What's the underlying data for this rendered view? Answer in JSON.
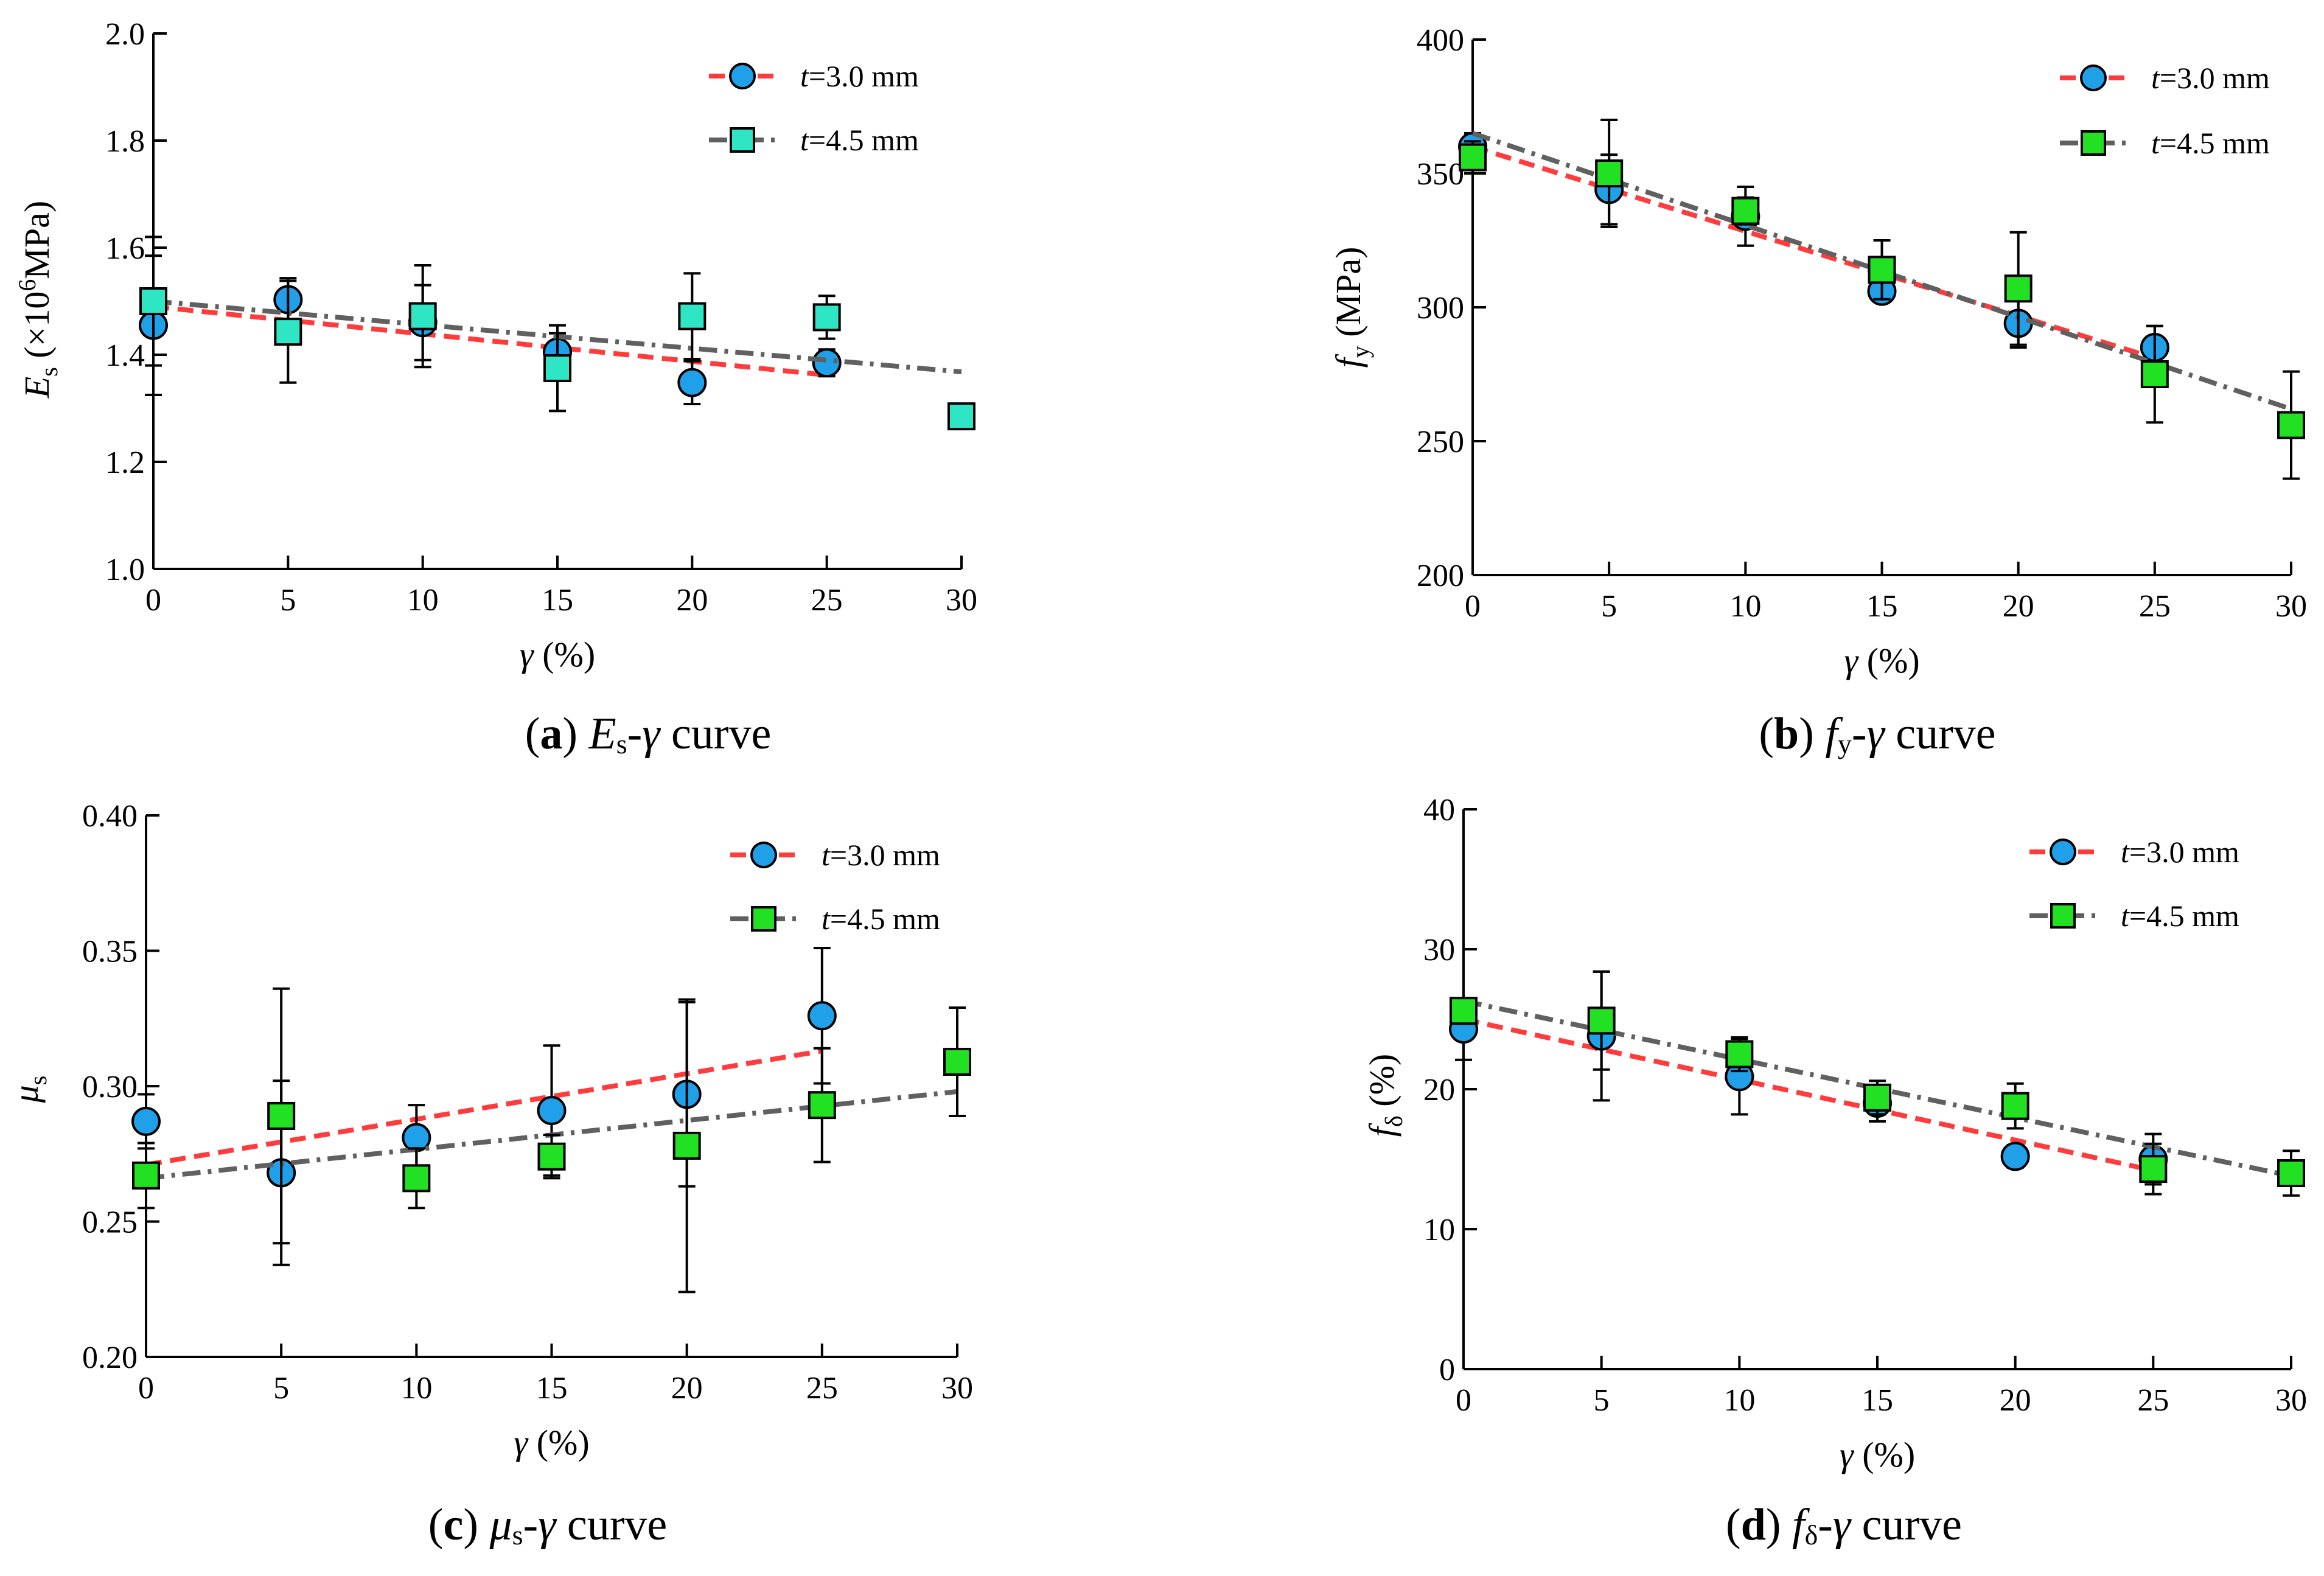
{
  "colors": {
    "series_30_line": "#ff3b3b",
    "series_45_line": "#606060",
    "marker_30": "#1fa0e8",
    "marker_45_panel_a": "#2ee6c4",
    "marker_45_other": "#22e022"
  },
  "chart_data": [
    {
      "id": "a",
      "type": "scatter",
      "caption": {
        "letter": "a",
        "sym": "E",
        "sub": "s",
        "rest": "-γ curve"
      },
      "ylabel": {
        "sym": "E",
        "sub": "s",
        "rest": " (×10",
        "sup": "6",
        "rest2": "MPa)"
      },
      "xlabel": "γ (%)",
      "xlim": [
        0,
        30
      ],
      "ylim": [
        1.0,
        2.0
      ],
      "xticks": [
        "0",
        "5",
        "10",
        "15",
        "20",
        "25",
        "30"
      ],
      "yticks": [
        "1.0",
        "1.2",
        "1.4",
        "1.6",
        "1.8",
        "2.0"
      ],
      "yticks_values": [
        1.0,
        1.2,
        1.4,
        1.6,
        1.8,
        2.0
      ],
      "legend": [
        "=3.0 mm",
        "=4.5 mm"
      ],
      "legend_prefix": "t",
      "series": [
        {
          "name": "t=3.0 mm",
          "marker": "circle",
          "x": [
            0,
            5,
            10,
            15,
            20,
            25
          ],
          "y": [
            1.455,
            1.503,
            1.46,
            1.405,
            1.348,
            1.385
          ],
          "err": [
            0.13,
            0.04,
            0.07,
            0.035,
            0.04,
            0.025
          ],
          "fit": [
            [
              0,
              1.49
            ],
            [
              25,
              1.362
            ]
          ]
        },
        {
          "name": "t=4.5 mm",
          "marker": "square",
          "x": [
            0,
            5,
            10,
            15,
            20,
            25,
            30
          ],
          "y": [
            1.5,
            1.443,
            1.472,
            1.375,
            1.472,
            1.47,
            1.285
          ],
          "err": [
            0.12,
            0.095,
            0.095,
            0.08,
            0.08,
            0.04,
            0.02
          ],
          "fit": [
            [
              0,
              1.5
            ],
            [
              30,
              1.368
            ]
          ]
        }
      ]
    },
    {
      "id": "b",
      "type": "scatter",
      "caption": {
        "letter": "b",
        "sym": "f",
        "sub": "y",
        "rest": "-γ curve"
      },
      "ylabel": {
        "sym": "f",
        "sub": "y",
        "rest": " (MPa)",
        "sup": "",
        "rest2": ""
      },
      "xlabel": "γ (%)",
      "xlim": [
        0,
        30
      ],
      "ylim": [
        200,
        400
      ],
      "xticks": [
        "0",
        "5",
        "10",
        "15",
        "20",
        "25",
        "30"
      ],
      "yticks": [
        "200",
        "250",
        "300",
        "350",
        "400"
      ],
      "yticks_values": [
        200,
        250,
        300,
        350,
        400
      ],
      "legend": [
        "=3.0 mm",
        "=4.5 mm"
      ],
      "legend_prefix": "t",
      "series": [
        {
          "name": "t=3.0 mm",
          "marker": "circle",
          "x": [
            0,
            5,
            10,
            15,
            20,
            25
          ],
          "y": [
            360,
            344,
            334,
            306,
            294,
            285
          ],
          "err": [
            5,
            13,
            11,
            3,
            9,
            8
          ],
          "fit": [
            [
              0,
              360
            ],
            [
              25,
              281
            ]
          ]
        },
        {
          "name": "t=4.5 mm",
          "marker": "square",
          "x": [
            0,
            5,
            10,
            15,
            20,
            25,
            30
          ],
          "y": [
            356,
            350,
            336,
            314,
            307,
            275,
            256
          ],
          "err": [
            6,
            20,
            5,
            11,
            21,
            18,
            20
          ],
          "fit": [
            [
              0,
              365
            ],
            [
              30,
              262
            ]
          ]
        }
      ]
    },
    {
      "id": "c",
      "type": "scatter",
      "caption": {
        "letter": "c",
        "sym": "μ",
        "sub": "s",
        "rest": "-γ curve"
      },
      "ylabel": {
        "sym": "μ",
        "sub": "s",
        "rest": "",
        "sup": "",
        "rest2": ""
      },
      "xlabel": "γ (%)",
      "xlim": [
        0,
        30
      ],
      "ylim": [
        0.2,
        0.4
      ],
      "xticks": [
        "0",
        "5",
        "10",
        "15",
        "20",
        "25",
        "30"
      ],
      "yticks": [
        "0.20",
        "0.25",
        "0.30",
        "0.35",
        "0.40"
      ],
      "yticks_values": [
        0.2,
        0.25,
        0.3,
        0.35,
        0.4
      ],
      "legend": [
        "=3.0 mm",
        "=4.5 mm"
      ],
      "legend_prefix": "t",
      "series": [
        {
          "name": "t=3.0 mm",
          "marker": "circle",
          "x": [
            0,
            5,
            10,
            15,
            20,
            25
          ],
          "y": [
            0.287,
            0.268,
            0.281,
            0.291,
            0.297,
            0.326
          ],
          "err": [
            0.01,
            0.034,
            0.012,
            0.024,
            0.034,
            0.025
          ],
          "fit": [
            [
              0,
              0.271
            ],
            [
              25,
              0.313
            ]
          ]
        },
        {
          "name": "t=4.5 mm",
          "marker": "square",
          "x": [
            0,
            5,
            10,
            15,
            20,
            25,
            30
          ],
          "y": [
            0.267,
            0.289,
            0.266,
            0.274,
            0.278,
            0.293,
            0.309
          ],
          "err": [
            0.012,
            0.047,
            0.011,
            0.008,
            0.054,
            0.021,
            0.02
          ],
          "fit": [
            [
              0,
              0.266
            ],
            [
              30,
              0.298
            ]
          ]
        }
      ]
    },
    {
      "id": "d",
      "type": "scatter",
      "caption": {
        "letter": "d",
        "sym": "f",
        "sub": "δ",
        "rest": "-γ curve"
      },
      "ylabel": {
        "sym": "f",
        "sub": "δ",
        "rest": " (%)",
        "sup": "",
        "rest2": ""
      },
      "xlabel": "γ (%)",
      "xlim": [
        0,
        30
      ],
      "ylim": [
        0,
        40
      ],
      "xticks": [
        "0",
        "5",
        "10",
        "15",
        "20",
        "25",
        "30"
      ],
      "yticks": [
        "0",
        "10",
        "20",
        "30",
        "40"
      ],
      "yticks_values": [
        0,
        10,
        20,
        30,
        40
      ],
      "legend": [
        "=3.0 mm",
        "=4.5 mm"
      ],
      "legend_prefix": "t",
      "series": [
        {
          "name": "t=3.0 mm",
          "marker": "circle",
          "x": [
            0,
            5,
            10,
            15,
            20,
            25
          ],
          "y": [
            24.3,
            23.8,
            20.9,
            19.0,
            15.2,
            15.0
          ],
          "err": [
            2.2,
            4.6,
            2.7,
            1.3,
            0.8,
            1.8
          ],
          "fit": [
            [
              0,
              25.0
            ],
            [
              25,
              14.2
            ]
          ]
        },
        {
          "name": "t=4.5 mm",
          "marker": "square",
          "x": [
            0,
            5,
            10,
            15,
            20,
            25,
            30
          ],
          "y": [
            25.6,
            24.9,
            22.5,
            19.4,
            18.8,
            14.3,
            14.0
          ],
          "err": [
            0.7,
            3.5,
            1.2,
            1.2,
            1.6,
            1.8,
            1.6
          ],
          "fit": [
            [
              0,
              26.3
            ],
            [
              30,
              13.8
            ]
          ]
        }
      ]
    }
  ]
}
